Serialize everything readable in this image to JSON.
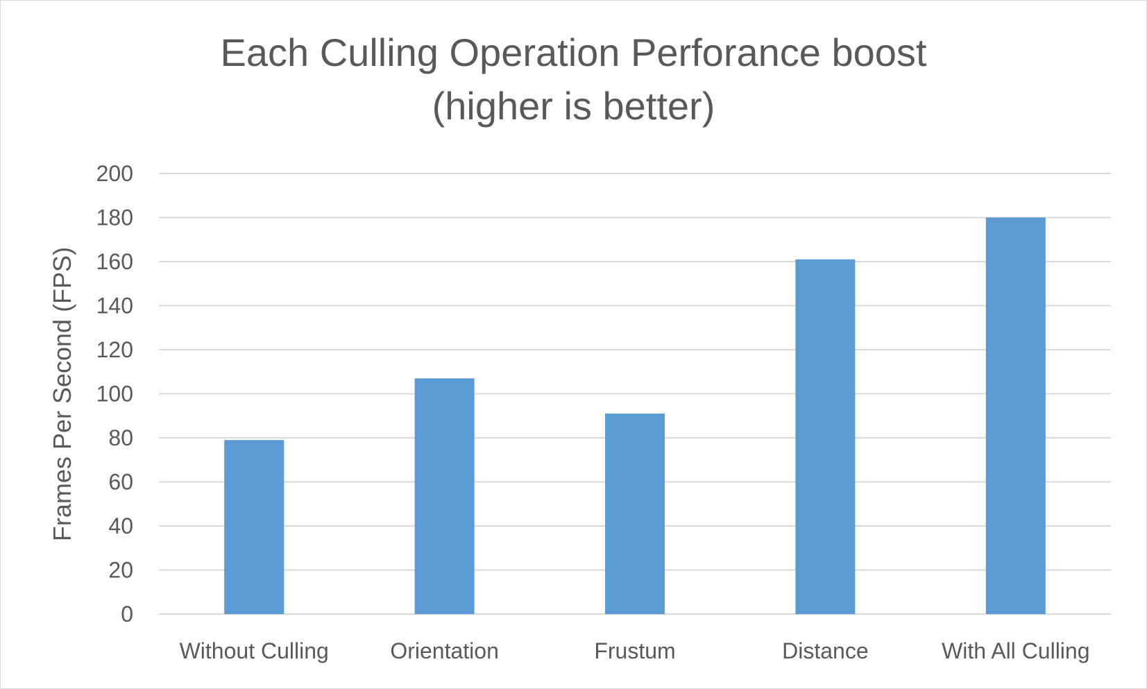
{
  "chart_data": {
    "type": "bar",
    "title": "Each Culling Operation Perforance boost",
    "subtitle": "(higher is better)",
    "xlabel": "",
    "ylabel": "Frames Per Second (FPS)",
    "categories": [
      "Without Culling",
      "Orientation",
      "Frustum",
      "Distance",
      "With All Culling"
    ],
    "series": [
      {
        "values": [
          79,
          107,
          91,
          161,
          180
        ],
        "color": "#5b9bd5"
      }
    ],
    "ylim": [
      0,
      200
    ],
    "yticks": [
      0,
      20,
      40,
      60,
      80,
      100,
      120,
      140,
      160,
      180,
      200
    ],
    "grid": true,
    "legend": "none"
  }
}
